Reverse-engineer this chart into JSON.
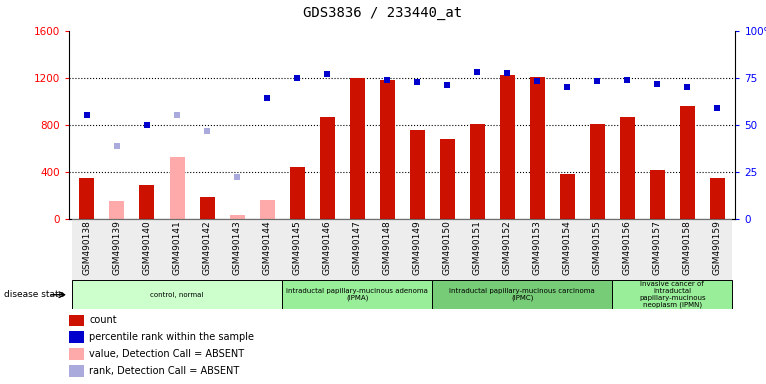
{
  "title": "GDS3836 / 233440_at",
  "samples": [
    "GSM490138",
    "GSM490139",
    "GSM490140",
    "GSM490141",
    "GSM490142",
    "GSM490143",
    "GSM490144",
    "GSM490145",
    "GSM490146",
    "GSM490147",
    "GSM490148",
    "GSM490149",
    "GSM490150",
    "GSM490151",
    "GSM490152",
    "GSM490153",
    "GSM490154",
    "GSM490155",
    "GSM490156",
    "GSM490157",
    "GSM490158",
    "GSM490159"
  ],
  "count_values": [
    350,
    null,
    290,
    null,
    190,
    null,
    null,
    440,
    870,
    1200,
    1180,
    760,
    680,
    810,
    1220,
    1210,
    380,
    810,
    870,
    415,
    960,
    350
  ],
  "count_absent": [
    null,
    150,
    null,
    530,
    null,
    30,
    160,
    null,
    null,
    null,
    null,
    null,
    null,
    null,
    null,
    null,
    null,
    null,
    null,
    null,
    null,
    null
  ],
  "rank_present": [
    880,
    null,
    800,
    null,
    null,
    null,
    1030,
    1200,
    1230,
    null,
    1180,
    1160,
    1140,
    1250,
    1240,
    1170,
    1120,
    1170,
    1180,
    1150,
    1120,
    940
  ],
  "rank_absent": [
    null,
    620,
    null,
    880,
    750,
    360,
    null,
    null,
    null,
    null,
    null,
    null,
    null,
    null,
    null,
    null,
    null,
    null,
    null,
    null,
    null,
    null
  ],
  "groups": [
    {
      "label": "control, normal",
      "start": 0,
      "end": 7,
      "color": "#ccffcc"
    },
    {
      "label": "intraductal papillary-mucinous adenoma\n(IPMA)",
      "start": 7,
      "end": 12,
      "color": "#99ee99"
    },
    {
      "label": "intraductal papillary-mucinous carcinoma\n(IPMC)",
      "start": 12,
      "end": 18,
      "color": "#77cc77"
    },
    {
      "label": "invasive cancer of\nintraductal\npapillary-mucinous\nneoplasm (IPMN)",
      "start": 18,
      "end": 22,
      "color": "#99ee99"
    }
  ],
  "ylim_left": [
    0,
    1600
  ],
  "ylim_right": [
    0,
    100
  ],
  "yticks_left": [
    0,
    400,
    800,
    1200,
    1600
  ],
  "yticks_right": [
    0,
    25,
    50,
    75,
    100
  ],
  "bar_color": "#cc1100",
  "bar_absent_color": "#ffaaaa",
  "rank_present_color": "#0000cc",
  "rank_absent_color": "#aaaadd",
  "grid_color": "#000000",
  "legend_items": [
    {
      "color": "#cc1100",
      "label": "count",
      "shape": "square"
    },
    {
      "color": "#0000cc",
      "label": "percentile rank within the sample",
      "shape": "square"
    },
    {
      "color": "#ffaaaa",
      "label": "value, Detection Call = ABSENT",
      "shape": "square"
    },
    {
      "color": "#aaaadd",
      "label": "rank, Detection Call = ABSENT",
      "shape": "square"
    }
  ]
}
